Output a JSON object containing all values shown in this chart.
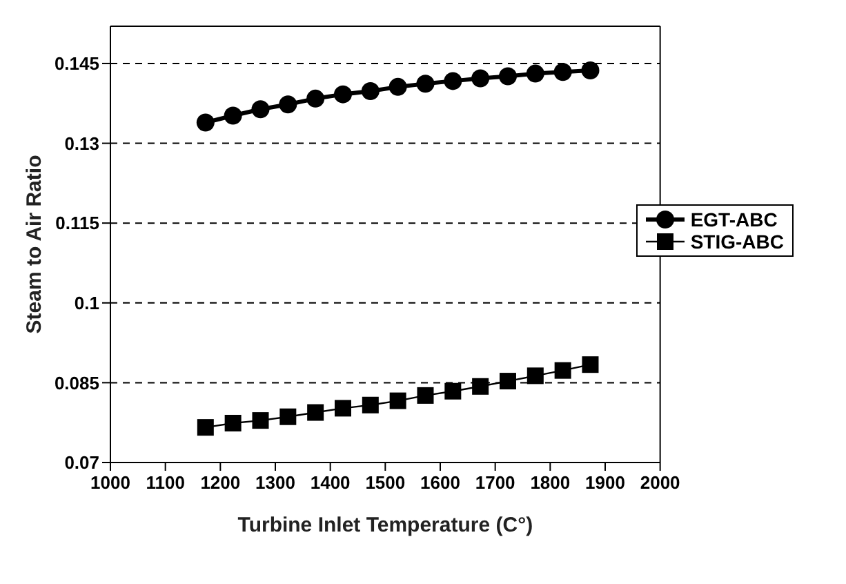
{
  "chart_data": {
    "type": "line",
    "xlabel": "Turbine Inlet Temperature (C°)",
    "ylabel": "Steam  to Air Ratio",
    "x": [
      1173,
      1223,
      1273,
      1323,
      1373,
      1423,
      1473,
      1523,
      1573,
      1623,
      1673,
      1723,
      1773,
      1823,
      1873
    ],
    "series": [
      {
        "name": "EGT-ABC",
        "color": "#000000",
        "marker": "circle",
        "values": [
          0.1339,
          0.1352,
          0.1364,
          0.1373,
          0.1384,
          0.1392,
          0.1398,
          0.1406,
          0.1412,
          0.1417,
          0.1422,
          0.1426,
          0.1431,
          0.1434,
          0.1437
        ]
      },
      {
        "name": "STIG-ABC",
        "color": "#000000",
        "marker": "square",
        "values": [
          0.0766,
          0.0774,
          0.0779,
          0.0786,
          0.0794,
          0.0802,
          0.0808,
          0.0816,
          0.0826,
          0.0834,
          0.0843,
          0.0853,
          0.0863,
          0.0873,
          0.0884
        ]
      }
    ],
    "xlim": [
      1000,
      2000
    ],
    "xticks": [
      1000,
      1100,
      1200,
      1300,
      1400,
      1500,
      1600,
      1700,
      1800,
      1900,
      2000
    ],
    "ylim": [
      0.07,
      0.152
    ],
    "yticks": [
      0.07,
      0.085,
      0.1,
      0.115,
      0.13,
      0.145
    ],
    "grid": "y",
    "legend": "right",
    "line_style": "solid"
  }
}
